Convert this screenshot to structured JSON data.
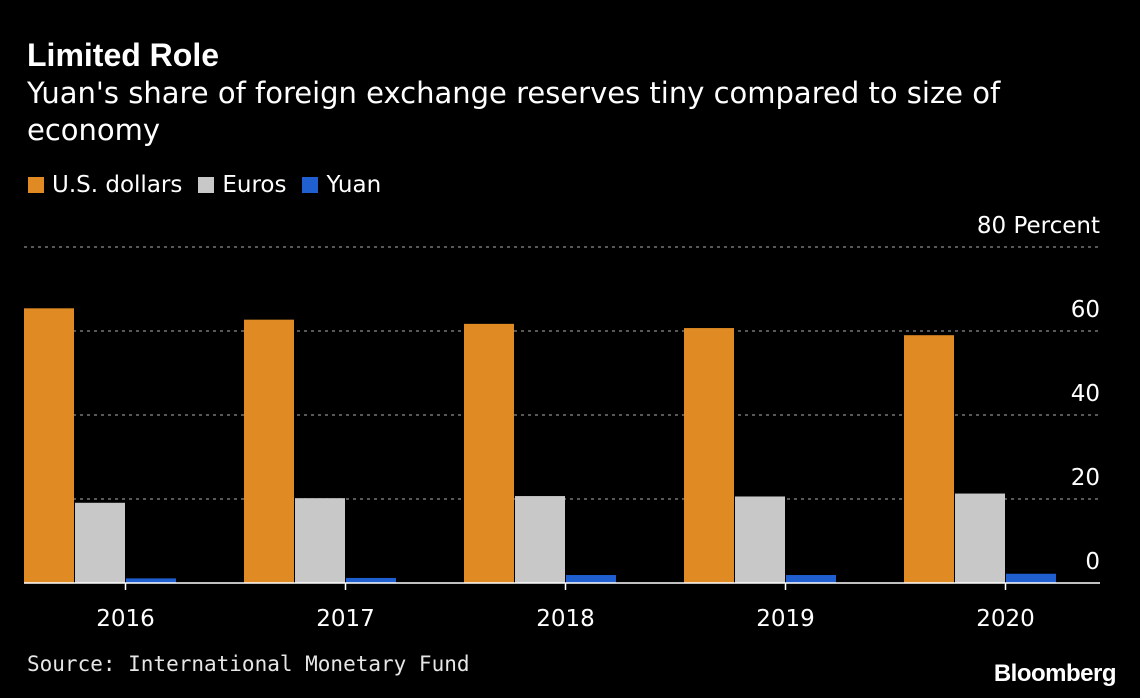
{
  "title": "Limited Role",
  "subtitle": "Yuan's share of foreign exchange reserves tiny compared to size of economy",
  "source": "Source: International Monetary Fund",
  "logo": "Bloomberg",
  "colors": {
    "background": "#000000",
    "usd": "#e08a23",
    "eur": "#c8c8c8",
    "cny": "#1f5fd0",
    "grid": "#8c8c8c",
    "text": "#ffffff"
  },
  "legend": [
    {
      "label": "U.S. dollars",
      "color": "#e08a23"
    },
    {
      "label": "Euros",
      "color": "#c8c8c8"
    },
    {
      "label": "Yuan",
      "color": "#1f5fd0"
    }
  ],
  "chart_data": {
    "type": "bar",
    "categories": [
      "2016",
      "2017",
      "2018",
      "2019",
      "2020"
    ],
    "series": [
      {
        "name": "U.S. dollars",
        "values": [
          65.4,
          62.7,
          61.7,
          60.7,
          59.0
        ]
      },
      {
        "name": "Euros",
        "values": [
          19.1,
          20.2,
          20.7,
          20.6,
          21.3
        ]
      },
      {
        "name": "Yuan",
        "values": [
          1.1,
          1.2,
          1.9,
          1.9,
          2.2
        ]
      }
    ],
    "ylim": [
      0,
      80
    ],
    "yticks": [
      0,
      20,
      40,
      60,
      80
    ],
    "ytick_labels": [
      "0",
      "20",
      "40",
      "60",
      "80"
    ],
    "yunit": "Percent",
    "grid": true,
    "legend_position": "top-left",
    "axis_side": "right"
  }
}
